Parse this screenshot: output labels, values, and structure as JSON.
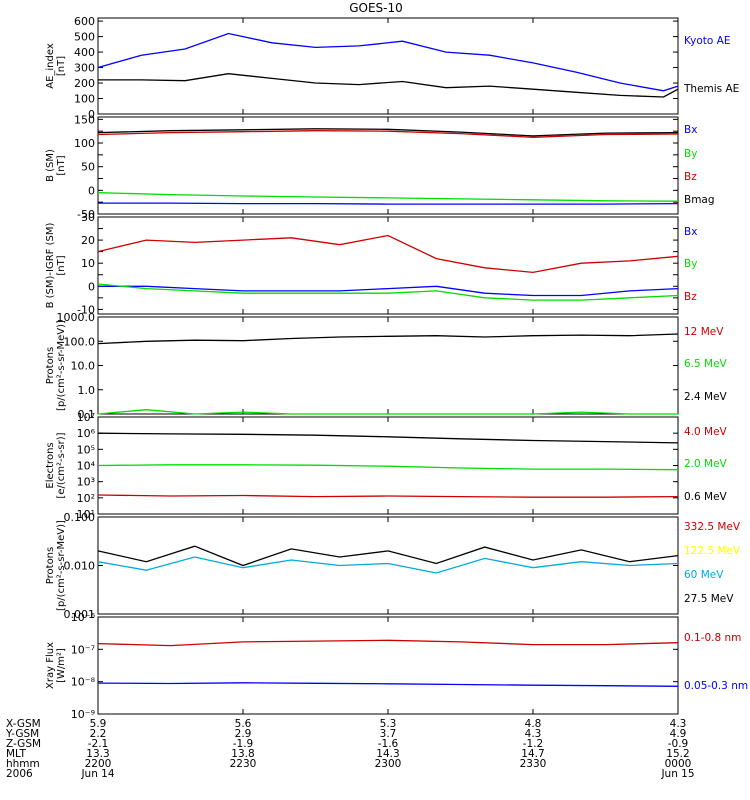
{
  "title": "GOES-10",
  "colors": {
    "black": "#000000",
    "blue": "#0000ff",
    "red": "#cc0000",
    "green": "#00dd00",
    "yellow": "#ffff00",
    "cyan": "#00aadd"
  },
  "chart_data": [
    {
      "type": "line",
      "ylabel": [
        "AE_index",
        "[nT]"
      ],
      "yscale": "linear",
      "ylim": [
        0,
        620
      ],
      "yticks": [
        0,
        100,
        200,
        300,
        400,
        500,
        600
      ],
      "ytick_labels": [
        "0",
        "100",
        "200",
        "300",
        "400",
        "500",
        "600"
      ],
      "x_hhmm": [
        2200,
        2209,
        2218,
        2227,
        2236,
        2245,
        2254,
        2303,
        2312,
        2321,
        2330,
        2339,
        2348,
        2357,
        2400
      ],
      "series": [
        {
          "name": "Kyoto AE",
          "color": "blue",
          "values": [
            300,
            380,
            420,
            520,
            460,
            430,
            440,
            470,
            400,
            380,
            330,
            270,
            200,
            150,
            180
          ]
        },
        {
          "name": "Themis AE",
          "color": "black",
          "values": [
            220,
            220,
            215,
            260,
            230,
            200,
            190,
            210,
            170,
            180,
            160,
            140,
            120,
            110,
            160
          ]
        }
      ]
    },
    {
      "type": "line",
      "ylabel": [
        "B (SM)",
        "[nT]"
      ],
      "yscale": "linear",
      "ylim": [
        -50,
        155
      ],
      "yticks": [
        -50,
        -25,
        0,
        25,
        50,
        75,
        100,
        125,
        150
      ],
      "ytick_labels": [
        "-50",
        "",
        "0",
        "",
        "50",
        "",
        "100",
        "",
        "150"
      ],
      "x_hhmm": [
        2200,
        2215,
        2230,
        2245,
        2300,
        2315,
        2330,
        2345,
        2400
      ],
      "series": [
        {
          "name": "Bx",
          "color": "blue",
          "values": [
            -27,
            -27,
            -28,
            -28,
            -29,
            -29,
            -29,
            -29,
            -28
          ]
        },
        {
          "name": "By",
          "color": "green",
          "values": [
            -5,
            -9,
            -12,
            -14,
            -16,
            -18,
            -20,
            -22,
            -23
          ]
        },
        {
          "name": "Bz",
          "color": "red",
          "values": [
            118,
            122,
            124,
            126,
            125,
            120,
            112,
            118,
            119
          ]
        },
        {
          "name": "Bmag",
          "color": "black",
          "values": [
            122,
            126,
            128,
            130,
            129,
            123,
            115,
            121,
            122
          ]
        }
      ]
    },
    {
      "type": "line",
      "ylabel": [
        "B (SM)-IGRF (SM)",
        "[nT]"
      ],
      "yscale": "linear",
      "ylim": [
        -12,
        30
      ],
      "yticks": [
        -10,
        -5,
        0,
        5,
        10,
        15,
        20,
        25,
        30
      ],
      "ytick_labels": [
        "-10",
        "",
        "0",
        "",
        "10",
        "",
        "20",
        "",
        "30"
      ],
      "x_hhmm": [
        2200,
        2210,
        2220,
        2230,
        2240,
        2250,
        2300,
        2310,
        2320,
        2330,
        2340,
        2350,
        2400
      ],
      "series": [
        {
          "name": "Bx",
          "color": "blue",
          "values": [
            0,
            0,
            -1,
            -2,
            -2,
            -2,
            -1,
            0,
            -3,
            -4,
            -4,
            -2,
            -1
          ]
        },
        {
          "name": "By",
          "color": "green",
          "values": [
            1,
            -1,
            -2,
            -3,
            -3,
            -3,
            -3,
            -2,
            -5,
            -6,
            -6,
            -5,
            -4
          ]
        },
        {
          "name": "Bz",
          "color": "red",
          "values": [
            15,
            20,
            19,
            20,
            21,
            18,
            22,
            12,
            8,
            6,
            10,
            11,
            13
          ]
        }
      ]
    },
    {
      "type": "line",
      "ylabel": [
        "Protons",
        "[p/(cm²-s-sr-MeV)]"
      ],
      "yscale": "log",
      "ylim": [
        0.1,
        1000
      ],
      "yticks": [
        0.1,
        1,
        10,
        100,
        1000
      ],
      "ytick_labels": [
        "0.1",
        "1.0",
        "10.0",
        "100.0",
        "1000.0"
      ],
      "x_hhmm": [
        2200,
        2210,
        2220,
        2230,
        2240,
        2250,
        2300,
        2310,
        2320,
        2330,
        2340,
        2350,
        2400
      ],
      "series": [
        {
          "name": "12 MeV",
          "color": "red",
          "values": []
        },
        {
          "name": "6.5 MeV",
          "color": "green",
          "values": [
            0.1,
            0.15,
            0.1,
            0.12,
            0.1,
            0.1,
            0.1,
            0.1,
            0.1,
            0.1,
            0.12,
            0.1,
            0.1
          ]
        },
        {
          "name": "2.4 MeV",
          "color": "black",
          "values": [
            80,
            100,
            110,
            105,
            130,
            150,
            160,
            170,
            150,
            170,
            180,
            170,
            200
          ]
        }
      ]
    },
    {
      "type": "line",
      "ylabel": [
        "Electrons",
        "[e/(cm²-s-sr)]"
      ],
      "yscale": "log",
      "ylim": [
        10,
        10000000.0
      ],
      "yticks": [
        10,
        100,
        1000,
        10000,
        100000,
        1000000,
        10000000
      ],
      "ytick_labels": [
        "10¹",
        "10²",
        "10³",
        "10⁴",
        "10⁵",
        "10⁶",
        "10⁷"
      ],
      "x_hhmm": [
        2200,
        2215,
        2230,
        2245,
        2300,
        2315,
        2330,
        2345,
        2400
      ],
      "series": [
        {
          "name": "4.0 MeV",
          "color": "red",
          "values": [
            150,
            130,
            140,
            120,
            130,
            120,
            110,
            110,
            120
          ]
        },
        {
          "name": "2.0 MeV",
          "color": "green",
          "values": [
            10000,
            11000,
            11000,
            10500,
            9000,
            7000,
            6000,
            6000,
            5500
          ]
        },
        {
          "name": "0.6 MeV",
          "color": "black",
          "values": [
            1000000,
            900000,
            850000,
            750000,
            600000,
            450000,
            350000,
            300000,
            250000
          ]
        }
      ]
    },
    {
      "type": "line",
      "ylabel": [
        "Protons",
        "[p/(cm²-s-sr-MeV)]"
      ],
      "yscale": "log",
      "ylim": [
        0.001,
        0.1
      ],
      "yticks": [
        0.001,
        0.01,
        0.1
      ],
      "ytick_labels": [
        "0.001",
        "0.010",
        "0.100"
      ],
      "x_hhmm": [
        2200,
        2210,
        2220,
        2230,
        2240,
        2250,
        2300,
        2310,
        2320,
        2330,
        2340,
        2350,
        2400
      ],
      "series": [
        {
          "name": "332.5 MeV",
          "color": "red",
          "values": []
        },
        {
          "name": "122.5 MeV",
          "color": "yellow",
          "values": []
        },
        {
          "name": "60 MeV",
          "color": "cyan",
          "values": [
            0.012,
            0.008,
            0.015,
            0.009,
            0.013,
            0.01,
            0.011,
            0.007,
            0.014,
            0.009,
            0.012,
            0.01,
            0.011
          ]
        },
        {
          "name": "27.5 MeV",
          "color": "black",
          "values": [
            0.02,
            0.012,
            0.025,
            0.01,
            0.022,
            0.015,
            0.02,
            0.011,
            0.024,
            0.013,
            0.021,
            0.012,
            0.016
          ]
        }
      ]
    },
    {
      "type": "line",
      "ylabel": [
        "Xray Flux",
        "[W/m²]"
      ],
      "yscale": "log",
      "ylim": [
        1e-09,
        1e-06
      ],
      "yticks": [
        1e-09,
        1e-08,
        1e-07,
        1e-06
      ],
      "ytick_labels": [
        "10⁻⁹",
        "10⁻⁸",
        "10⁻⁷",
        "10⁻⁶"
      ],
      "x_hhmm": [
        2200,
        2215,
        2230,
        2245,
        2300,
        2315,
        2330,
        2345,
        2400
      ],
      "series": [
        {
          "name": "0.1-0.8 nm",
          "color": "red",
          "values": [
            1.5e-07,
            1.3e-07,
            1.7e-07,
            1.8e-07,
            1.9e-07,
            1.7e-07,
            1.4e-07,
            1.4e-07,
            1.6e-07
          ]
        },
        {
          "name": "0.05-0.3 nm",
          "color": "blue",
          "values": [
            9e-09,
            8.8e-09,
            9.2e-09,
            8.9e-09,
            8.6e-09,
            8.2e-09,
            7.8e-09,
            7.5e-09,
            7.2e-09
          ]
        }
      ]
    }
  ],
  "xaxis": {
    "row_labels": [
      "X-GSM",
      "Y-GSM",
      "Z-GSM",
      "MLT",
      "hhmm",
      "2006"
    ],
    "ticks": [
      {
        "values": [
          "5.9",
          "2.2",
          "-2.1",
          "13.3",
          "2200",
          "Jun 14"
        ]
      },
      {
        "values": [
          "5.6",
          "2.9",
          "-1.9",
          "13.8",
          "2230",
          ""
        ]
      },
      {
        "values": [
          "5.3",
          "3.7",
          "-1.6",
          "14.3",
          "2300",
          ""
        ]
      },
      {
        "values": [
          "4.8",
          "4.3",
          "-1.2",
          "14.7",
          "2330",
          ""
        ]
      },
      {
        "values": [
          "4.3",
          "4.9",
          "-0.9",
          "15.2",
          "0000",
          "Jun 15"
        ]
      }
    ]
  }
}
